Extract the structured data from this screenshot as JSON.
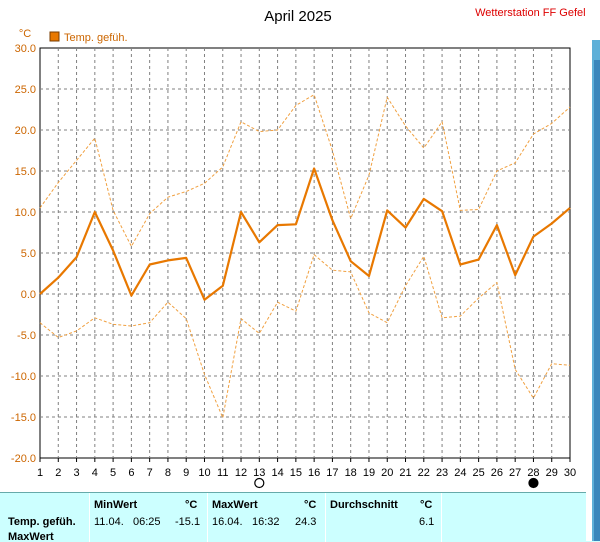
{
  "chart_data": {
    "type": "line",
    "title": "April 2025",
    "station": "Wetterstation FF Gefell",
    "ylabel": "°C",
    "legend": {
      "label": "Temp. gefüh.",
      "color": "#e87800",
      "placement": "top-left"
    },
    "ylim": [
      -20,
      30
    ],
    "yticks": [
      "30.0",
      "25.0",
      "20.0",
      "15.0",
      "10.0",
      "5.0",
      "0.0",
      "-5.0",
      "-10.0",
      "-15.0",
      "-20.0"
    ],
    "xlim": [
      1,
      30
    ],
    "x": [
      1,
      2,
      3,
      4,
      5,
      6,
      7,
      8,
      9,
      10,
      11,
      12,
      13,
      14,
      15,
      16,
      17,
      18,
      19,
      20,
      21,
      22,
      23,
      24,
      25,
      26,
      27,
      28,
      29,
      30
    ],
    "grid": true,
    "series": [
      {
        "name": "Temp. gefüh.",
        "role": "mean",
        "color": "#e87800",
        "values": [
          0.0,
          2.0,
          4.5,
          10.0,
          5.3,
          -0.2,
          3.6,
          4.1,
          4.4,
          -0.7,
          1.0,
          10.0,
          6.3,
          8.4,
          8.5,
          15.3,
          9.0,
          4.0,
          2.2,
          10.2,
          8.1,
          11.6,
          10.1,
          3.6,
          4.2,
          8.4,
          2.3,
          7.0,
          8.6,
          10.5
        ]
      },
      {
        "role": "max",
        "color": "#f0a040",
        "values": [
          10.5,
          13.6,
          16.3,
          19.0,
          10.2,
          5.8,
          9.8,
          11.8,
          12.5,
          13.5,
          15.5,
          21.0,
          19.8,
          20.0,
          23.0,
          24.3,
          17.5,
          9.2,
          14.5,
          24.0,
          20.5,
          17.8,
          21.0,
          10.2,
          10.3,
          15.0,
          16.0,
          19.5,
          20.8,
          22.8
        ]
      },
      {
        "role": "min",
        "color": "#f0a040",
        "values": [
          -3.5,
          -5.3,
          -4.5,
          -2.9,
          -3.7,
          -3.9,
          -3.5,
          -1.0,
          -3.0,
          -9.8,
          -15.1,
          -3.0,
          -4.8,
          -1.0,
          -2.1,
          4.8,
          2.9,
          2.7,
          -2.3,
          -3.5,
          1.0,
          4.6,
          -2.9,
          -2.7,
          -0.5,
          1.4,
          -9.2,
          -12.7,
          -8.5,
          -8.7
        ]
      }
    ],
    "moon_markers": [
      {
        "day": 13,
        "phase": "full"
      },
      {
        "day": 28,
        "phase": "new"
      }
    ]
  },
  "stats": {
    "header_min": "MinWert",
    "header_max": "MaxWert",
    "header_avg": "Durchschnitt",
    "unit": "°C",
    "rows": [
      {
        "label": "Temp. gefüh.",
        "min_date": "11.04.",
        "min_time": "06:25",
        "min_value": "-15.1",
        "max_date": "16.04.",
        "max_time": "16:32",
        "max_value": "24.3",
        "avg": "6.1"
      },
      {
        "label": "MaxWert"
      }
    ]
  },
  "colors": {
    "line": "#e87800",
    "range": "#f0a040",
    "title": "#000000",
    "station": "#dd0000",
    "axis_labels": "#cc6600",
    "grid": "#808080",
    "table_bg": "#ccffff"
  }
}
